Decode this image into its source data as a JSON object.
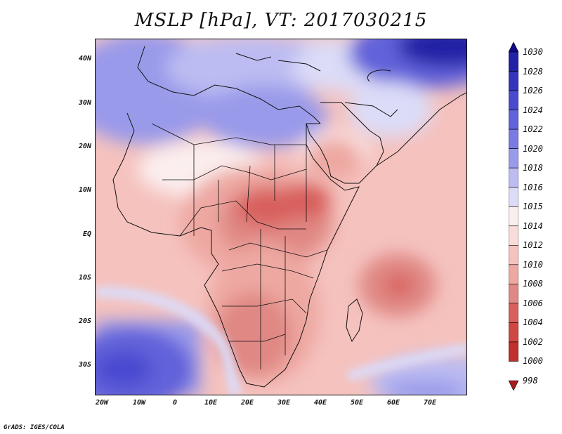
{
  "title": "MSLP [hPa], VT: 2017030215",
  "credit": "GrADS: IGES/COLA",
  "lat_labels": [
    "40N",
    "30N",
    "20N",
    "10N",
    "EQ",
    "10S",
    "20S",
    "30S"
  ],
  "lon_labels": [
    "20W",
    "10W",
    "0",
    "10E",
    "20E",
    "30E",
    "40E",
    "50E",
    "60E",
    "70E"
  ],
  "colorbar": {
    "levels": [
      "1030",
      "1028",
      "1026",
      "1024",
      "1022",
      "1020",
      "1018",
      "1016",
      "1015",
      "1014",
      "1012",
      "1010",
      "1008",
      "1006",
      "1004",
      "1002",
      "1000",
      "998"
    ],
    "colors": [
      "#120a8c",
      "#2222a6",
      "#3434bc",
      "#4a4ad0",
      "#6262da",
      "#7a7ae2",
      "#9a9aea",
      "#bcbcf2",
      "#dcdcf8",
      "#fbeeee",
      "#f9dcda",
      "#f5c2be",
      "#eea8a2",
      "#e08884",
      "#d85f5b",
      "#cf4643",
      "#c02f2c",
      "#a91c1c"
    ]
  },
  "colors": {
    "high_deep": "#120a8c",
    "low_deep": "#c02f2c"
  },
  "map": {
    "domain": "Africa, Middle East, western Indian Ocean",
    "lon_range": [
      -22,
      80
    ],
    "lat_range": [
      -37,
      45
    ]
  }
}
